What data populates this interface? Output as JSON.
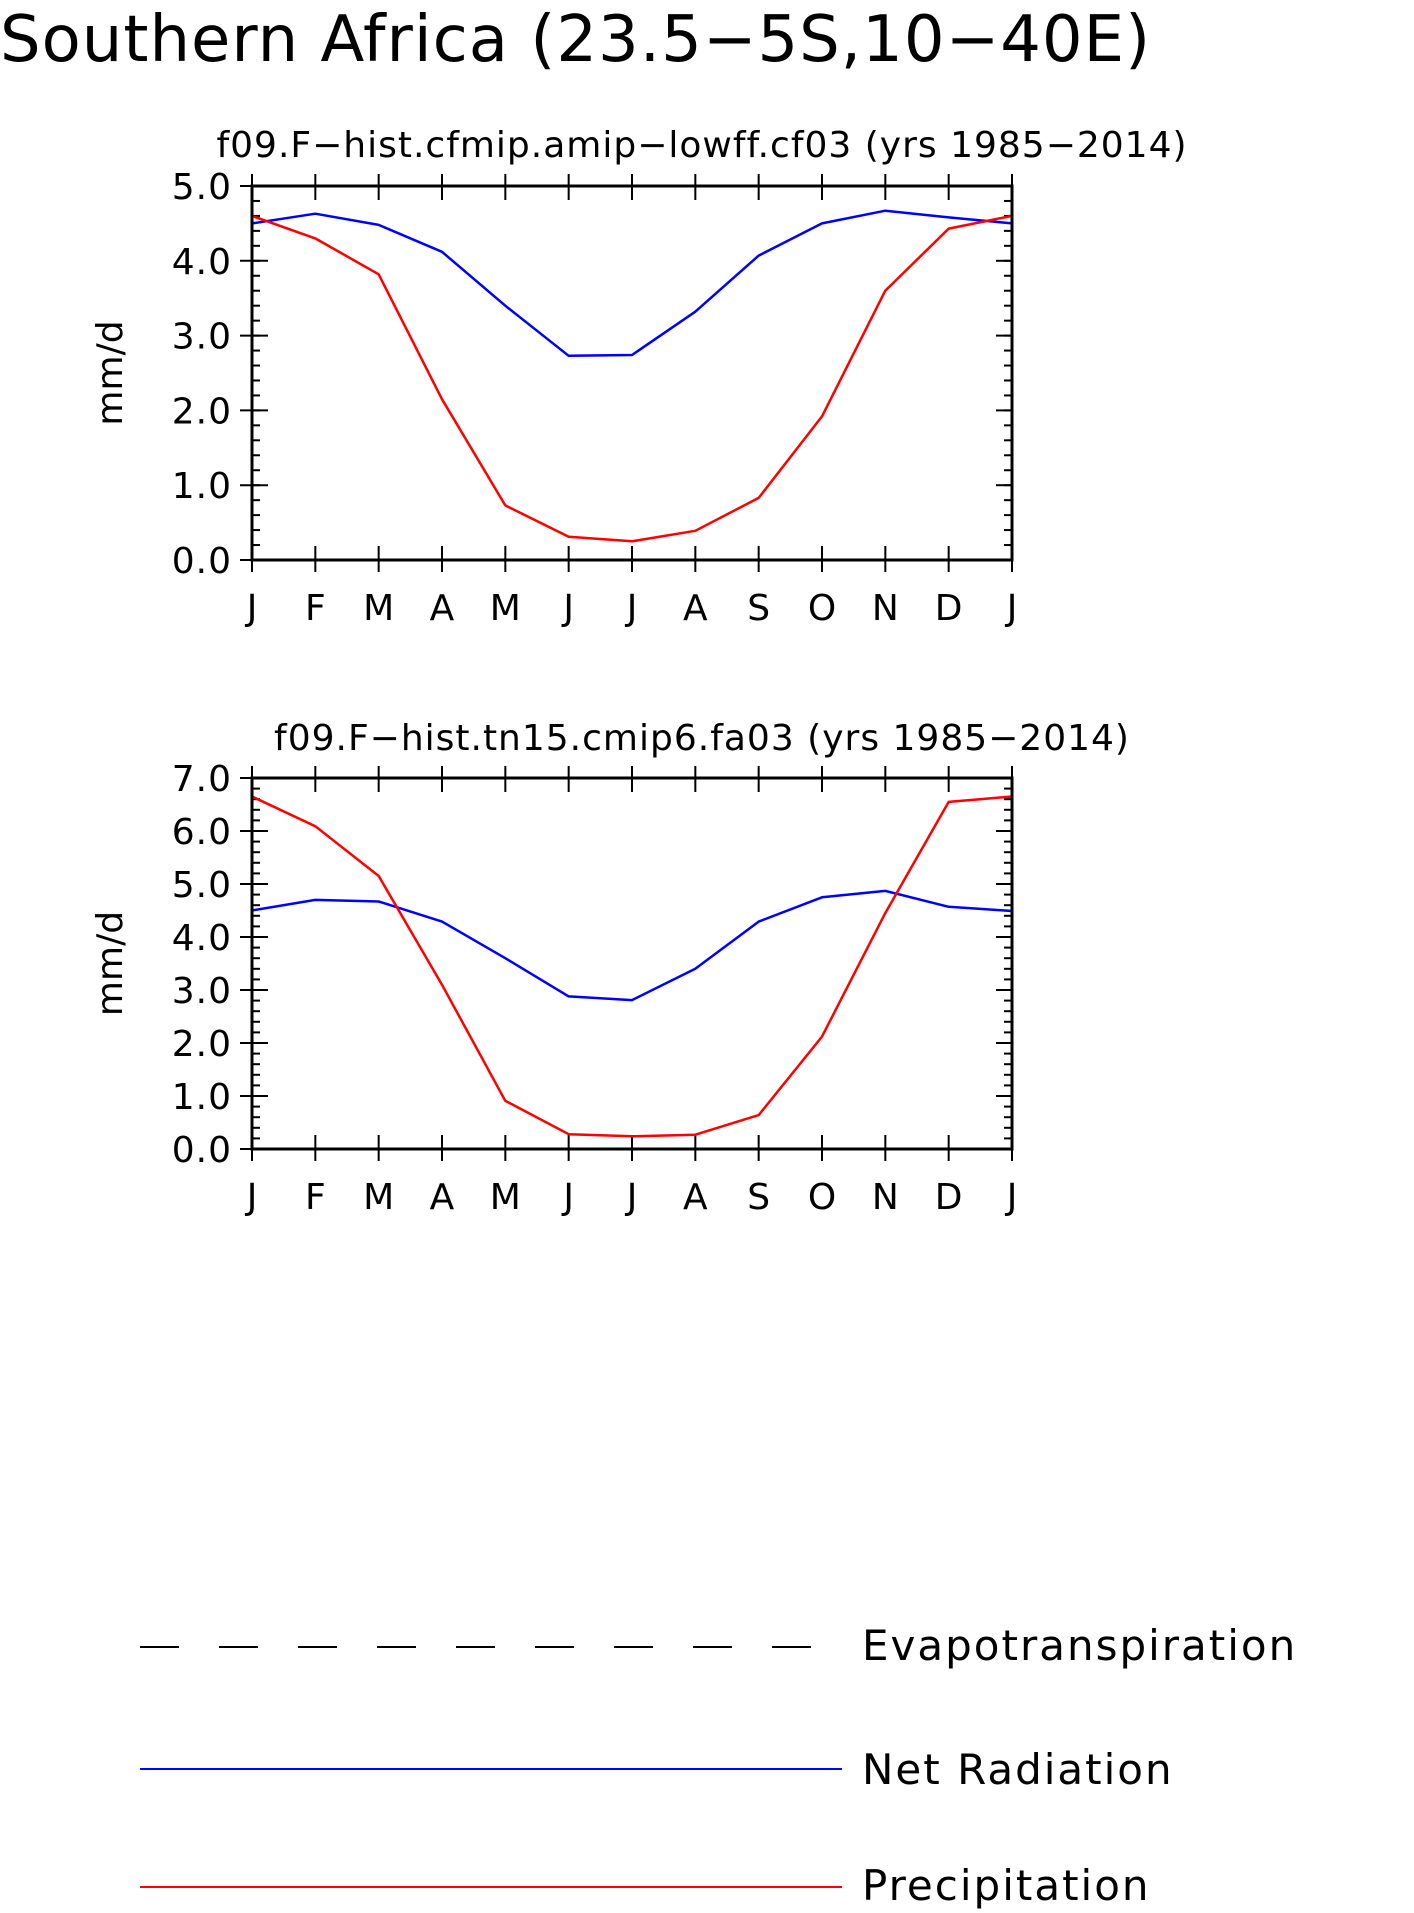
{
  "title": "Southern Africa (23.5−5S,10−40E)",
  "chart_data": [
    {
      "type": "line",
      "title": "f09.F−hist.cfmip.amip−lowff.cf03 (yrs 1985−2014)",
      "ylabel": "mm/d",
      "xlabel": "",
      "categories": [
        "J",
        "F",
        "M",
        "A",
        "M",
        "J",
        "J",
        "A",
        "S",
        "O",
        "N",
        "D",
        "J"
      ],
      "ylim": [
        0,
        5
      ],
      "yticks": [
        "0.0",
        "1.0",
        "2.0",
        "3.0",
        "4.0",
        "5.0"
      ],
      "series": [
        {
          "name": "Net Radiation",
          "color": "#0000ff",
          "values": [
            4.5,
            4.63,
            4.48,
            4.12,
            3.4,
            2.73,
            2.74,
            3.32,
            4.07,
            4.5,
            4.67,
            4.58,
            4.5
          ]
        },
        {
          "name": "Precipitation",
          "color": "#ff0000",
          "values": [
            4.6,
            4.3,
            3.82,
            2.15,
            0.73,
            0.31,
            0.25,
            0.39,
            0.83,
            1.92,
            3.6,
            4.43,
            4.6
          ]
        }
      ]
    },
    {
      "type": "line",
      "title": "f09.F−hist.tn15.cmip6.fa03 (yrs 1985−2014)",
      "ylabel": "mm/d",
      "xlabel": "",
      "categories": [
        "J",
        "F",
        "M",
        "A",
        "M",
        "J",
        "J",
        "A",
        "S",
        "O",
        "N",
        "D",
        "J"
      ],
      "ylim": [
        0,
        7
      ],
      "yticks": [
        "0.0",
        "1.0",
        "2.0",
        "3.0",
        "4.0",
        "5.0",
        "6.0",
        "7.0"
      ],
      "series": [
        {
          "name": "Net Radiation",
          "color": "#0000ff",
          "values": [
            4.5,
            4.7,
            4.67,
            4.29,
            3.6,
            2.88,
            2.81,
            3.4,
            4.29,
            4.75,
            4.87,
            4.57,
            4.49
          ]
        },
        {
          "name": "Precipitation",
          "color": "#ff0000",
          "values": [
            6.65,
            6.09,
            5.15,
            3.1,
            0.91,
            0.28,
            0.24,
            0.27,
            0.64,
            2.12,
            4.45,
            6.55,
            6.65
          ]
        }
      ]
    }
  ],
  "legend": [
    {
      "label": "Evapotranspiration",
      "color": "#000000",
      "style": "dashed"
    },
    {
      "label": "Net Radiation",
      "color": "#0000ff",
      "style": "solid"
    },
    {
      "label": "Precipitation",
      "color": "#ff0000",
      "style": "solid"
    }
  ]
}
